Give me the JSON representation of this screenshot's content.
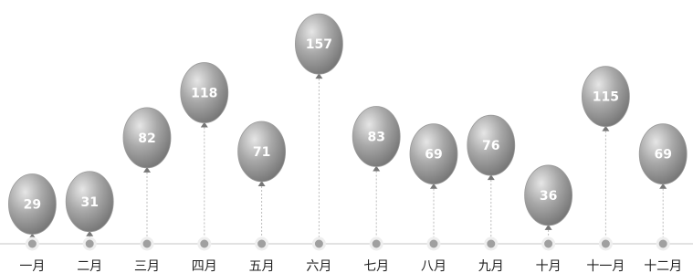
{
  "chart_data": {
    "type": "balloon",
    "categories": [
      "一月",
      "二月",
      "三月",
      "四月",
      "五月",
      "六月",
      "七月",
      "八月",
      "九月",
      "十月",
      "十一月",
      "十二月"
    ],
    "values": [
      29,
      31,
      82,
      118,
      71,
      157,
      83,
      69,
      76,
      36,
      115,
      69
    ],
    "color": "#9a9a9a",
    "ylim": [
      25,
      160
    ]
  }
}
